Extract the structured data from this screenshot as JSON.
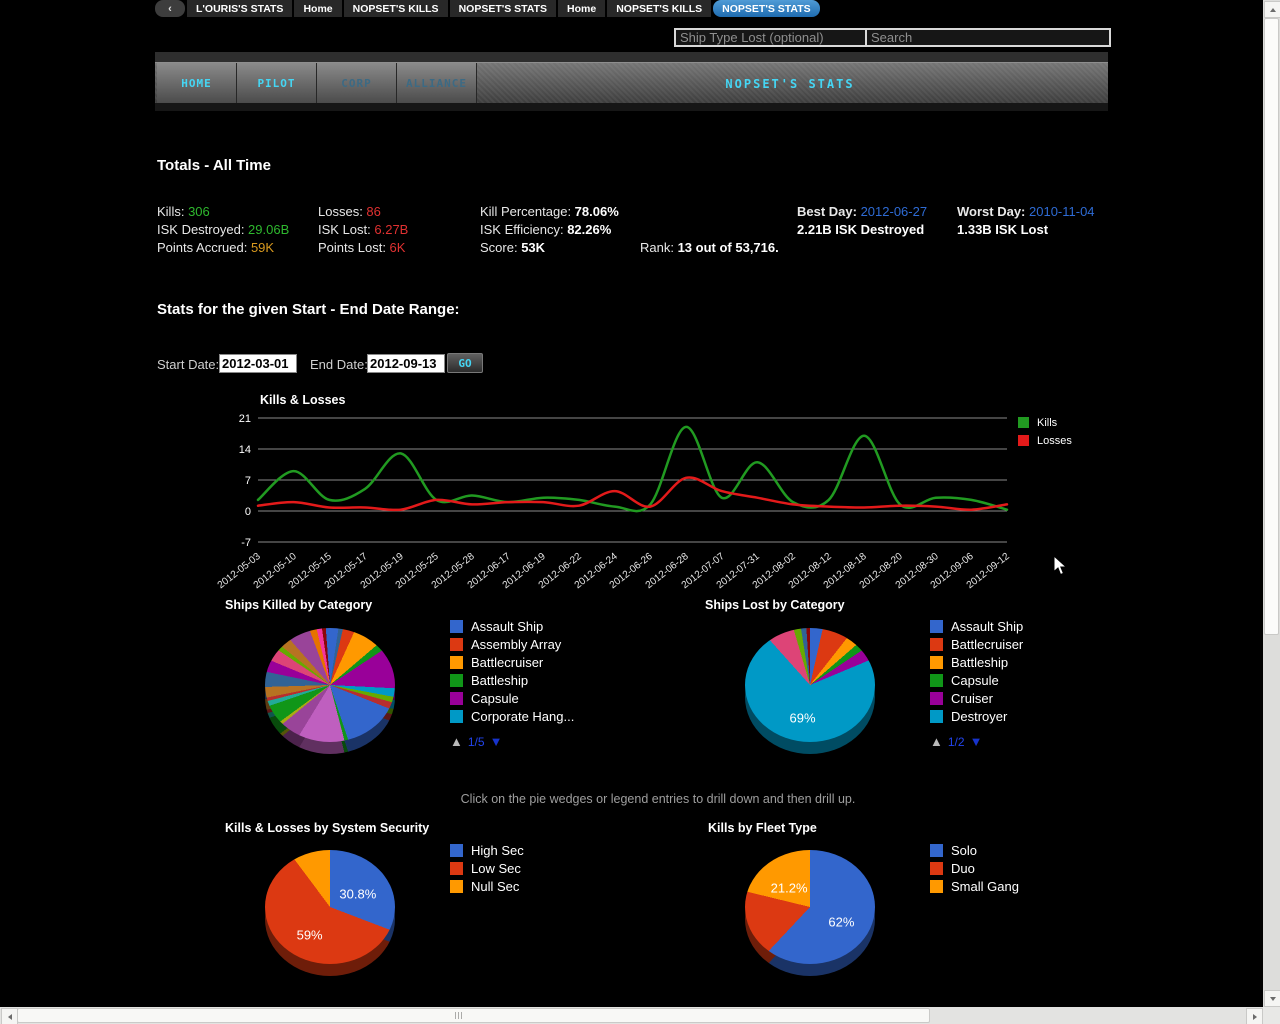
{
  "browser": {
    "back_label": "‹",
    "tabs": [
      {
        "label": "L'OURIS'S STATS",
        "active": false
      },
      {
        "label": "Home",
        "active": false
      },
      {
        "label": "NOPSET'S KILLS",
        "active": false
      },
      {
        "label": "NOPSET'S STATS",
        "active": false
      },
      {
        "label": "Home",
        "active": false
      },
      {
        "label": "NOPSET'S KILLS",
        "active": false
      },
      {
        "label": "NOPSET'S STATS",
        "active": true
      }
    ]
  },
  "search": {
    "ship_type_placeholder": "Ship Type Lost (optional)",
    "search_placeholder": "Search"
  },
  "nav": {
    "items": [
      {
        "label": "HOME",
        "state": "bright"
      },
      {
        "label": "PILOT",
        "state": "bright"
      },
      {
        "label": "CORP",
        "state": "dim"
      },
      {
        "label": "ALLIANCE",
        "state": "dim"
      }
    ],
    "title": "NOPSET'S STATS"
  },
  "totals": {
    "heading": "Totals - All Time",
    "stats": [
      {
        "label": "Kills:",
        "value": "306",
        "style": "green",
        "col": 0,
        "row": 0
      },
      {
        "label": "Losses:",
        "value": "86",
        "style": "red",
        "col": 1,
        "row": 0
      },
      {
        "label": "Kill Percentage:",
        "value": "78.06%",
        "style": "bold",
        "col": 2,
        "row": 0
      },
      {
        "label": "Best Day:",
        "value": "2012-06-27",
        "style": "link",
        "bold_label": true,
        "link": true,
        "col": 4,
        "row": 0
      },
      {
        "label": "Worst Day:",
        "value": "2010-11-04",
        "style": "link",
        "bold_label": true,
        "link": true,
        "col": 5,
        "row": 0
      },
      {
        "label": "ISK Destroyed:",
        "value": "29.06B",
        "style": "green",
        "col": 0,
        "row": 1
      },
      {
        "label": "ISK Lost:",
        "value": "6.27B",
        "style": "red",
        "col": 1,
        "row": 1
      },
      {
        "label": "ISK Efficiency:",
        "value": "82.26%",
        "style": "bold",
        "col": 2,
        "row": 1
      },
      {
        "label": "",
        "value": "2.21B ISK Destroyed",
        "style": "bold",
        "col": 4,
        "row": 1
      },
      {
        "label": "",
        "value": "1.33B ISK Lost",
        "style": "bold",
        "col": 5,
        "row": 1
      },
      {
        "label": "Points Accrued:",
        "value": "59K",
        "style": "orange",
        "col": 0,
        "row": 2
      },
      {
        "label": "Points Lost:",
        "value": "6K",
        "style": "red",
        "col": 1,
        "row": 2
      },
      {
        "label": "Score:",
        "value": "53K",
        "style": "bold",
        "col": 2,
        "row": 2
      },
      {
        "label": "Rank:",
        "value": "13 out of 53,716.",
        "style": "bold",
        "col": 3,
        "row": 2
      }
    ]
  },
  "date_range": {
    "heading": "Stats for the given Start - End Date Range:",
    "start_label": "Start Date:",
    "start_value": "2012-03-01",
    "end_label": "End Date:",
    "end_value": "2012-09-13",
    "go_label": "GO"
  },
  "note": "Click on the pie wedges or legend entries to drill down and then drill up.",
  "chart_data": [
    {
      "type": "line",
      "title": "Kills & Losses",
      "categories": [
        "2012-05-03",
        "2012-05-10",
        "2012-05-15",
        "2012-05-17",
        "2012-05-19",
        "2012-05-25",
        "2012-05-28",
        "2012-06-17",
        "2012-06-19",
        "2012-06-22",
        "2012-06-24",
        "2012-06-26",
        "2012-06-28",
        "2012-07-07",
        "2012-07-31",
        "2012-08-02",
        "2012-08-12",
        "2012-08-18",
        "2012-08-20",
        "2012-08-30",
        "2012-09-06",
        "2012-09-12"
      ],
      "yticks": [
        21,
        14,
        7,
        0,
        -7
      ],
      "ylim": [
        -7,
        21
      ],
      "grid": true,
      "legend_position": "right",
      "series": [
        {
          "name": "Kills",
          "color": "#219a21",
          "values": [
            2.5,
            9,
            2.5,
            5,
            13,
            2.5,
            3.5,
            2,
            3,
            2.5,
            1,
            1.5,
            19,
            3,
            11,
            2,
            2.5,
            17,
            1.5,
            3,
            2.5,
            0.3
          ]
        },
        {
          "name": "Losses",
          "color": "#e31a1a",
          "values": [
            1.2,
            2,
            0.8,
            0.8,
            0.3,
            2.5,
            1.5,
            2,
            2,
            1.2,
            4.5,
            1,
            7.5,
            4.5,
            3,
            1.5,
            1,
            0.8,
            1.2,
            1,
            0.3,
            1.5
          ]
        }
      ]
    },
    {
      "type": "pie",
      "title": "Ships Killed by Category",
      "legend": [
        {
          "label": "Assault Ship",
          "color": "#3366cc"
        },
        {
          "label": "Assembly Array",
          "color": "#dc3912"
        },
        {
          "label": "Battlecruiser",
          "color": "#ff9900"
        },
        {
          "label": "Battleship",
          "color": "#109618"
        },
        {
          "label": "Capsule",
          "color": "#990099"
        },
        {
          "label": "Corporate Hang...",
          "color": "#0099c6"
        }
      ],
      "pager": {
        "up": "▲",
        "text": "1/5",
        "down": "▼"
      },
      "slices": [
        {
          "label": "Assault Ship",
          "color": "#3366cc",
          "pct": 2.2
        },
        {
          "color": "#316395",
          "pct": 1.2
        },
        {
          "label": "Assembly Array",
          "color": "#dc3912",
          "pct": 3.0
        },
        {
          "label": "Battlecruiser",
          "color": "#ff9900",
          "pct": 6.5
        },
        {
          "label": "Battleship",
          "color": "#109618",
          "pct": 1.8
        },
        {
          "label": "Capsule",
          "color": "#990099",
          "pct": 9.5
        },
        {
          "label": "Corporate Hang...",
          "color": "#0099c6",
          "pct": 2.0
        },
        {
          "color": "#66aa00",
          "pct": 1.3
        },
        {
          "color": "#b82e2e",
          "pct": 1.6
        },
        {
          "color": "#3366cc",
          "pct": 13.0
        },
        {
          "color": "#109618",
          "pct": 1.0
        },
        {
          "color": "#bf5fbf",
          "pct": 12.0
        },
        {
          "color": "#994499",
          "pct": 5.0
        },
        {
          "color": "#aaaa11",
          "pct": 0.8
        },
        {
          "color": "#109618",
          "pct": 4.5
        },
        {
          "color": "#22aa99",
          "pct": 1.2
        },
        {
          "color": "#b82e2e",
          "pct": 0.8
        },
        {
          "color": "#b77322",
          "pct": 2.5
        },
        {
          "color": "#316395",
          "pct": 3.5
        },
        {
          "color": "#990099",
          "pct": 2.8
        },
        {
          "color": "#dd4477",
          "pct": 3.0
        },
        {
          "color": "#66aa00",
          "pct": 1.2
        },
        {
          "color": "#b77322",
          "pct": 2.6
        },
        {
          "color": "#994499",
          "pct": 5.5
        },
        {
          "color": "#e67300",
          "pct": 1.8
        },
        {
          "color": "#f4359e",
          "pct": 1.4
        },
        {
          "color": "#8b0707",
          "pct": 1.0
        },
        {
          "color": "#3366cc",
          "pct": 1.1
        }
      ]
    },
    {
      "type": "pie",
      "title": "Ships Lost by Category",
      "legend": [
        {
          "label": "Assault Ship",
          "color": "#3366cc"
        },
        {
          "label": "Battlecruiser",
          "color": "#dc3912"
        },
        {
          "label": "Battleship",
          "color": "#ff9900"
        },
        {
          "label": "Capsule",
          "color": "#109618"
        },
        {
          "label": "Cruiser",
          "color": "#990099"
        },
        {
          "label": "Destroyer",
          "color": "#0099c6"
        }
      ],
      "pager": {
        "up": "▲",
        "text": "1/2",
        "down": "▼"
      },
      "slices": [
        {
          "label": "Assault Ship",
          "color": "#3366cc",
          "pct": 3.5
        },
        {
          "label": "Battlecruiser",
          "color": "#dc3912",
          "pct": 7.0
        },
        {
          "label": "Battleship",
          "color": "#ff9900",
          "pct": 3.0
        },
        {
          "label": "Capsule",
          "color": "#109618",
          "pct": 2.0
        },
        {
          "label": "Cruiser",
          "color": "#990099",
          "pct": 3.0
        },
        {
          "label": "Destroyer",
          "color": "#0099c6",
          "pct": 69.0,
          "pct_label": "69%"
        },
        {
          "color": "#dd4477",
          "pct": 7.0
        },
        {
          "color": "#66aa00",
          "pct": 2.0
        },
        {
          "color": "#316395",
          "pct": 1.5
        },
        {
          "color": "#8b0707",
          "pct": 1.0
        }
      ]
    },
    {
      "type": "pie",
      "title": "Kills & Losses by System Security",
      "legend": [
        {
          "label": "High Sec",
          "color": "#3366cc"
        },
        {
          "label": "Low Sec",
          "color": "#dc3912"
        },
        {
          "label": "Null Sec",
          "color": "#ff9900"
        }
      ],
      "slices": [
        {
          "label": "High Sec",
          "color": "#3366cc",
          "pct": 30.8,
          "pct_label": "30.8%"
        },
        {
          "label": "Low Sec",
          "color": "#dc3912",
          "pct": 59.0,
          "pct_label": "59%"
        },
        {
          "label": "Null Sec",
          "color": "#ff9900",
          "pct": 10.2
        }
      ]
    },
    {
      "type": "pie",
      "title": "Kills by Fleet Type",
      "legend": [
        {
          "label": "Solo",
          "color": "#3366cc"
        },
        {
          "label": "Duo",
          "color": "#dc3912"
        },
        {
          "label": "Small Gang",
          "color": "#ff9900"
        }
      ],
      "slices": [
        {
          "label": "Solo",
          "color": "#3366cc",
          "pct": 62.0,
          "pct_label": "62%"
        },
        {
          "label": "Duo",
          "color": "#dc3912",
          "pct": 16.8
        },
        {
          "label": "Small Gang",
          "color": "#ff9900",
          "pct": 21.2,
          "pct_label": "21.2%"
        }
      ]
    }
  ]
}
